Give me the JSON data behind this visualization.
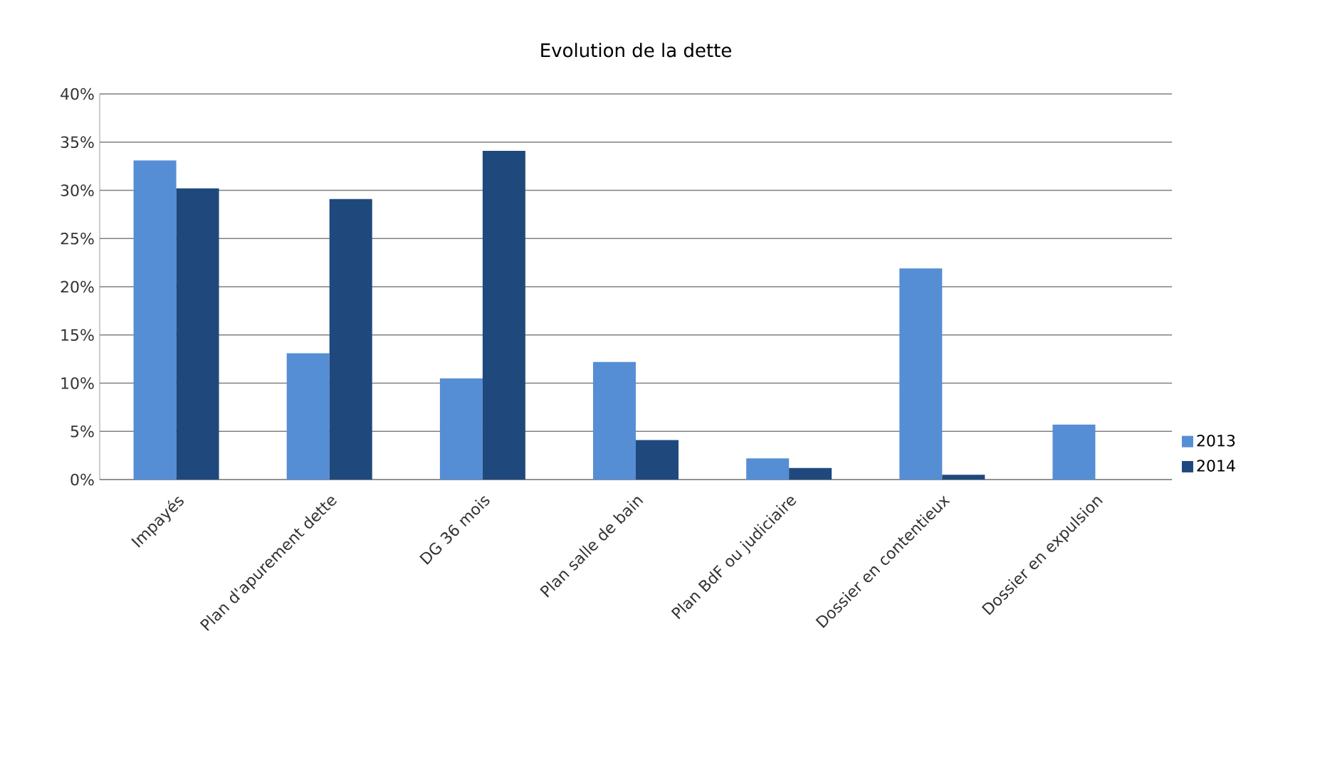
{
  "chart_data": {
    "type": "bar",
    "title": "Evolution de la dette",
    "categories": [
      "Impayés",
      "Plan d'apurement dette",
      "DG 36 mois",
      "Plan salle de bain",
      "Plan BdF ou judiciaire",
      "Dossier en contentieux",
      "Dossier en expulsion"
    ],
    "series": [
      {
        "name": "2013",
        "color": "#558ed5",
        "values": [
          33.1,
          13.1,
          10.5,
          12.2,
          2.2,
          21.9,
          5.7
        ]
      },
      {
        "name": "2014",
        "color": "#1f497d",
        "values": [
          30.2,
          29.1,
          34.1,
          4.1,
          1.2,
          0.5,
          null
        ]
      }
    ],
    "ylim": [
      0,
      40
    ],
    "yticks": [
      {
        "value": 0,
        "label": "0%"
      },
      {
        "value": 5,
        "label": "5%"
      },
      {
        "value": 10,
        "label": "10%"
      },
      {
        "value": 15,
        "label": "15%"
      },
      {
        "value": 20,
        "label": "20%"
      },
      {
        "value": 25,
        "label": "25%"
      },
      {
        "value": 30,
        "label": "30%"
      },
      {
        "value": 35,
        "label": "35%"
      },
      {
        "value": 40,
        "label": "40%"
      }
    ],
    "grid": "y",
    "legend": "right"
  }
}
